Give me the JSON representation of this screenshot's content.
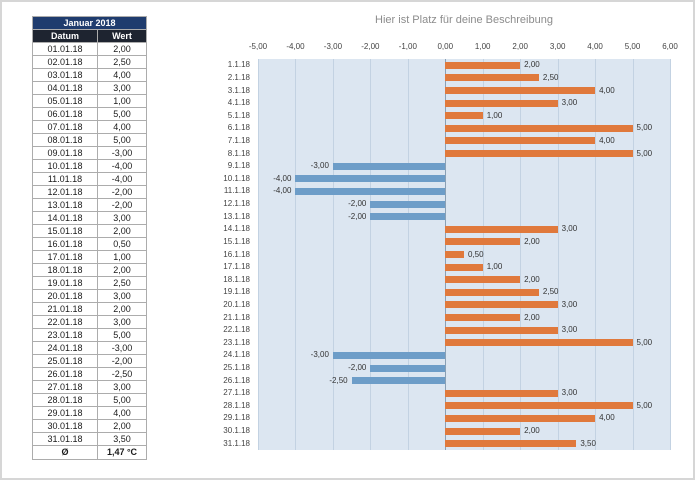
{
  "table": {
    "month_header": "Januar 2018",
    "columns": [
      "Datum",
      "Wert"
    ],
    "rows": [
      [
        "01.01.18",
        "2,00"
      ],
      [
        "02.01.18",
        "2,50"
      ],
      [
        "03.01.18",
        "4,00"
      ],
      [
        "04.01.18",
        "3,00"
      ],
      [
        "05.01.18",
        "1,00"
      ],
      [
        "06.01.18",
        "5,00"
      ],
      [
        "07.01.18",
        "4,00"
      ],
      [
        "08.01.18",
        "5,00"
      ],
      [
        "09.01.18",
        "-3,00"
      ],
      [
        "10.01.18",
        "-4,00"
      ],
      [
        "11.01.18",
        "-4,00"
      ],
      [
        "12.01.18",
        "-2,00"
      ],
      [
        "13.01.18",
        "-2,00"
      ],
      [
        "14.01.18",
        "3,00"
      ],
      [
        "15.01.18",
        "2,00"
      ],
      [
        "16.01.18",
        "0,50"
      ],
      [
        "17.01.18",
        "1,00"
      ],
      [
        "18.01.18",
        "2,00"
      ],
      [
        "19.01.18",
        "2,50"
      ],
      [
        "20.01.18",
        "3,00"
      ],
      [
        "21.01.18",
        "2,00"
      ],
      [
        "22.01.18",
        "3,00"
      ],
      [
        "23.01.18",
        "5,00"
      ],
      [
        "24.01.18",
        "-3,00"
      ],
      [
        "25.01.18",
        "-2,00"
      ],
      [
        "26.01.18",
        "-2,50"
      ],
      [
        "27.01.18",
        "3,00"
      ],
      [
        "28.01.18",
        "5,00"
      ],
      [
        "29.01.18",
        "4,00"
      ],
      [
        "30.01.18",
        "2,00"
      ],
      [
        "31.01.18",
        "3,50"
      ]
    ],
    "footer": {
      "label": "Ø",
      "value": "1,47 °C"
    }
  },
  "chart_data": {
    "type": "bar",
    "orientation": "horizontal",
    "title": "Hier ist Platz für deine Beschreibung",
    "categories": [
      "1.1.18",
      "2.1.18",
      "3.1.18",
      "4.1.18",
      "5.1.18",
      "6.1.18",
      "7.1.18",
      "8.1.18",
      "9.1.18",
      "10.1.18",
      "11.1.18",
      "12.1.18",
      "13.1.18",
      "14.1.18",
      "15.1.18",
      "16.1.18",
      "17.1.18",
      "18.1.18",
      "19.1.18",
      "20.1.18",
      "21.1.18",
      "22.1.18",
      "23.1.18",
      "24.1.18",
      "25.1.18",
      "26.1.18",
      "27.1.18",
      "28.1.18",
      "29.1.18",
      "30.1.18",
      "31.1.18"
    ],
    "values": [
      2,
      2.5,
      4,
      3,
      1,
      5,
      4,
      5,
      -3,
      -4,
      -4,
      -2,
      -2,
      3,
      2,
      0.5,
      1,
      2,
      2.5,
      3,
      2,
      3,
      5,
      -3,
      -2,
      -2.5,
      3,
      5,
      4,
      2,
      3.5
    ],
    "value_labels": [
      "2,00",
      "2,50",
      "4,00",
      "3,00",
      "1,00",
      "5,00",
      "4,00",
      "5,00",
      "-3,00",
      "-4,00",
      "-4,00",
      "-2,00",
      "-2,00",
      "3,00",
      "2,00",
      "0,50",
      "1,00",
      "2,00",
      "2,50",
      "3,00",
      "2,00",
      "3,00",
      "5,00",
      "-3,00",
      "-2,00",
      "-2,50",
      "3,00",
      "5,00",
      "4,00",
      "2,00",
      "3,50"
    ],
    "x_ticks": [
      "-5,00",
      "-4,00",
      "-3,00",
      "-2,00",
      "-1,00",
      "0,00",
      "1,00",
      "2,00",
      "3,00",
      "4,00",
      "5,00",
      "6,00"
    ],
    "xlim": [
      -5,
      6
    ],
    "xlabel": "",
    "ylabel": "",
    "grid": true,
    "legend": "none",
    "positive_color": "#E0793C",
    "negative_color": "#6D9DC8",
    "plot_background": "#DCE6F1"
  },
  "colors": {
    "month_header_bg": "#1F3C6E",
    "month_header_text": "#FFFFFF",
    "column_header_bg": "#1E2430",
    "column_header_text": "#FFFFFF",
    "table_border": "#ACACAC",
    "text": "#1A1A1A",
    "title_text": "#8C8C8C",
    "grid_line": "#C3D2E2",
    "zero_line": "#8AA0B5"
  }
}
